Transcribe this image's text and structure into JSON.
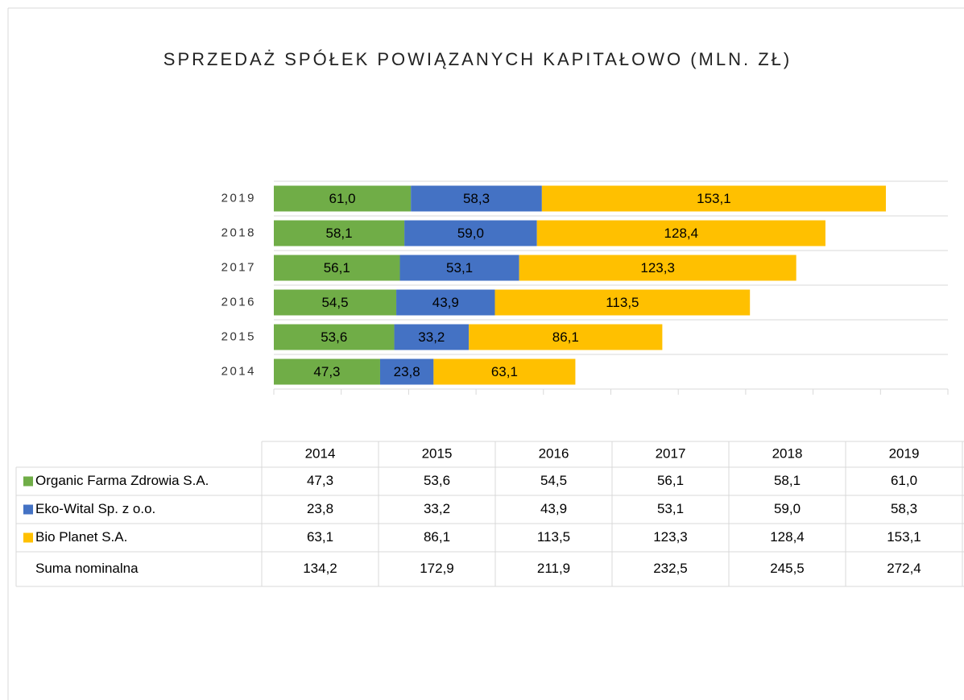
{
  "chart_data": {
    "type": "stacked-bar-horizontal",
    "title": "SPRZEDAŻ SPÓŁEK POWIĄZANYCH KAPITAŁOWO (MLN. ZŁ)",
    "categories": [
      "2014",
      "2015",
      "2016",
      "2017",
      "2018",
      "2019"
    ],
    "series": [
      {
        "name": "Organic Farma Zdrowia S.A.",
        "color": "#70ad47",
        "values": [
          47.3,
          53.6,
          54.5,
          56.1,
          58.1,
          61.0
        ],
        "value_labels": [
          "47,3",
          "53,6",
          "54,5",
          "56,1",
          "58,1",
          "61,0"
        ]
      },
      {
        "name": "Eko-Wital Sp. z o.o.",
        "color": "#4472c4",
        "values": [
          23.8,
          33.2,
          43.9,
          53.1,
          59.0,
          58.3
        ],
        "value_labels": [
          "23,8",
          "33,2",
          "43,9",
          "53,1",
          "59,0",
          "58,3"
        ]
      },
      {
        "name": "Bio Planet S.A.",
        "color": "#ffc000",
        "values": [
          63.1,
          86.1,
          113.5,
          123.3,
          128.4,
          153.1
        ],
        "value_labels": [
          "63,1",
          "86,1",
          "113,5",
          "123,3",
          "128,4",
          "153,1"
        ]
      }
    ],
    "xlim": [
      0,
      300
    ],
    "xticks": [
      0,
      30,
      60,
      90,
      120,
      150,
      180,
      210,
      240,
      270,
      300
    ],
    "totals": {
      "name": "Suma nominalna",
      "values": [
        134.2,
        172.9,
        211.9,
        232.5,
        245.5,
        272.4
      ],
      "value_labels": [
        "134,2",
        "172,9",
        "211,9",
        "232,5",
        "245,5",
        "272,4"
      ]
    }
  }
}
